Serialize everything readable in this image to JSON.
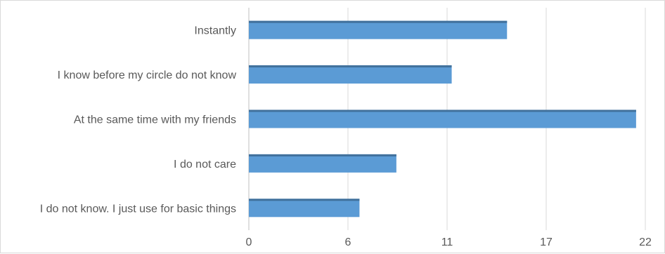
{
  "chart_data": {
    "type": "bar",
    "orientation": "horizontal",
    "categories": [
      "Instantly",
      "I know before my circle do not know",
      "At the same time with my friends",
      "I do not care",
      "I do not know. I just use for basic things"
    ],
    "values": [
      14,
      11,
      21,
      8,
      6
    ],
    "xlim": [
      0,
      21.5
    ],
    "xticks": [
      "0",
      "6",
      "11",
      "17",
      "22"
    ],
    "grid": true,
    "legend": "none",
    "title": "",
    "xlabel": "",
    "ylabel": "",
    "colors": {
      "bar": "#5b9bd5",
      "bar_edge": "#41719c",
      "grid": "#d9d9d9",
      "axis": "#bfbfbf",
      "text": "#595959"
    }
  }
}
